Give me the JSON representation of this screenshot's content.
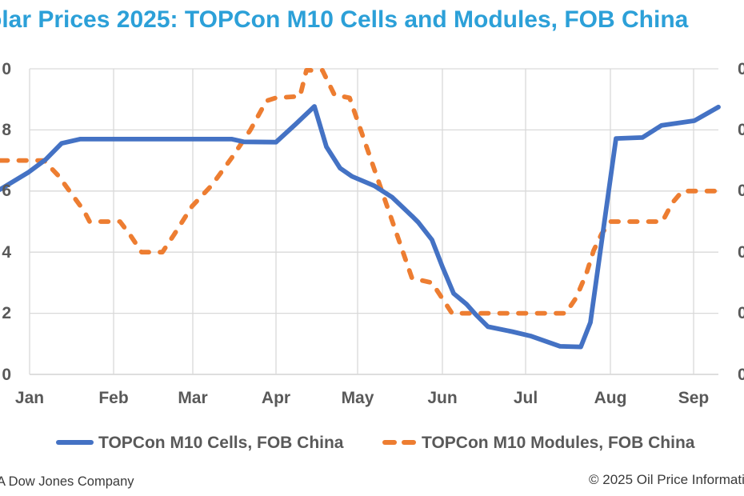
{
  "title": {
    "text": "olar Prices 2025: TOPCon M10 Cells and Modules, FOB China",
    "color": "#2CA0D8",
    "note_cropped": "left edge of title is cut off by the image crop"
  },
  "chart_data": {
    "type": "line",
    "x_axis": {
      "tick_labels": [
        "Jan",
        "Feb",
        "Mar",
        "Apr",
        "May",
        "Jun",
        "Jul",
        "Aug",
        "Sep"
      ],
      "x_unit": "px from left edge of image (chart cropped on both sides)"
    },
    "y_axis_left": {
      "tick_labels_visible": [
        "0",
        "8",
        "6",
        "4",
        "2",
        "0"
      ],
      "cropped": true
    },
    "y_axis_right": {
      "tick_labels_visible": [
        "0",
        "0",
        "0",
        "0",
        "0",
        "0"
      ],
      "cropped": true
    },
    "value_unit": "visible axis units; left axis labels are cropped to their last digit (top=0, then 8,6,4,2,0)",
    "series": [
      {
        "name": "TOPCon M10 Cells, FOB China",
        "color": "#4472C4",
        "style": "solid",
        "points": [
          [
            0,
            6.05
          ],
          [
            36,
            6.62
          ],
          [
            57,
            7.03
          ],
          [
            77,
            7.56
          ],
          [
            100,
            7.7
          ],
          [
            290,
            7.7
          ],
          [
            305,
            7.61
          ],
          [
            345,
            7.6
          ],
          [
            370,
            8.2
          ],
          [
            393,
            8.77
          ],
          [
            408,
            7.45
          ],
          [
            425,
            6.75
          ],
          [
            440,
            6.48
          ],
          [
            468,
            6.17
          ],
          [
            490,
            5.8
          ],
          [
            515,
            5.18
          ],
          [
            523,
            4.97
          ],
          [
            540,
            4.4
          ],
          [
            553,
            3.52
          ],
          [
            567,
            2.65
          ],
          [
            583,
            2.3
          ],
          [
            595,
            1.95
          ],
          [
            610,
            1.56
          ],
          [
            640,
            1.4
          ],
          [
            663,
            1.26
          ],
          [
            700,
            0.92
          ],
          [
            726,
            0.9
          ],
          [
            738,
            1.7
          ],
          [
            770,
            7.72
          ],
          [
            803,
            7.75
          ],
          [
            827,
            8.15
          ],
          [
            868,
            8.3
          ],
          [
            898,
            8.75
          ]
        ]
      },
      {
        "name": "TOPCon M10 Modules, FOB China",
        "color": "#ED7D31",
        "style": "dashed",
        "points": [
          [
            0,
            7.0
          ],
          [
            55,
            7.0
          ],
          [
            73,
            6.5
          ],
          [
            105,
            5.35
          ],
          [
            112,
            5.0
          ],
          [
            150,
            5.0
          ],
          [
            163,
            4.55
          ],
          [
            177,
            4.0
          ],
          [
            203,
            4.0
          ],
          [
            217,
            4.55
          ],
          [
            240,
            5.5
          ],
          [
            265,
            6.2
          ],
          [
            290,
            7.1
          ],
          [
            313,
            8.0
          ],
          [
            333,
            8.95
          ],
          [
            345,
            9.05
          ],
          [
            375,
            9.1
          ],
          [
            383,
            9.95
          ],
          [
            403,
            9.95
          ],
          [
            418,
            9.15
          ],
          [
            437,
            9.05
          ],
          [
            515,
            3.15
          ],
          [
            540,
            3.0
          ],
          [
            565,
            2.0
          ],
          [
            707,
            2.0
          ],
          [
            720,
            2.5
          ],
          [
            733,
            3.3
          ],
          [
            742,
            4.05
          ],
          [
            752,
            4.6
          ],
          [
            763,
            5.0
          ],
          [
            828,
            5.0
          ],
          [
            840,
            5.6
          ],
          [
            853,
            6.0
          ],
          [
            898,
            6.0
          ]
        ]
      }
    ]
  },
  "legend": {
    "items": [
      {
        "label": "TOPCon M10 Cells, FOB China",
        "color": "#4472C4",
        "style": "solid"
      },
      {
        "label": "TOPCon M10 Modules, FOB China",
        "color": "#ED7D31",
        "style": "dashed"
      }
    ]
  },
  "footer": {
    "left": "A Dow Jones Company",
    "right": "© 2025 Oil Price Informatio"
  }
}
